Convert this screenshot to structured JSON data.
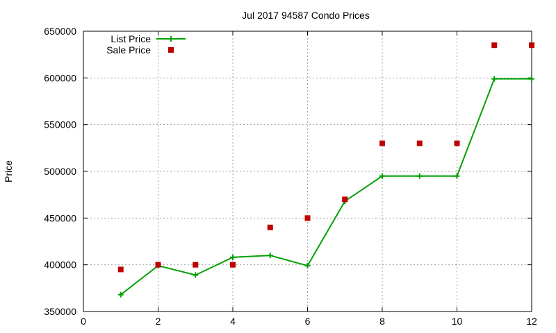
{
  "chart_data": {
    "type": "line",
    "title": "Jul 2017 94587 Condo Prices",
    "xlabel": "",
    "ylabel": "Price",
    "xlim": [
      0,
      12
    ],
    "ylim": [
      350000,
      650000
    ],
    "xticks": [
      0,
      2,
      4,
      6,
      8,
      10,
      12
    ],
    "yticks": [
      350000,
      400000,
      450000,
      500000,
      550000,
      600000,
      650000
    ],
    "grid": true,
    "legend_position": "top-left",
    "series": [
      {
        "name": "List Price",
        "style": "line-with-plus-markers",
        "color": "#00a000",
        "x": [
          1,
          2,
          3,
          4,
          5,
          6,
          7,
          8,
          9,
          10,
          11,
          12
        ],
        "y": [
          368000,
          399000,
          389000,
          408000,
          410000,
          399000,
          468000,
          495000,
          495000,
          495000,
          599000,
          599000
        ]
      },
      {
        "name": "Sale Price",
        "style": "square-markers",
        "color": "#c00000",
        "x": [
          1,
          2,
          3,
          4,
          5,
          6,
          7,
          8,
          9,
          10,
          11,
          12
        ],
        "y": [
          395000,
          400000,
          400000,
          400000,
          440000,
          450000,
          470000,
          530000,
          530000,
          530000,
          635000,
          635000
        ]
      }
    ]
  }
}
